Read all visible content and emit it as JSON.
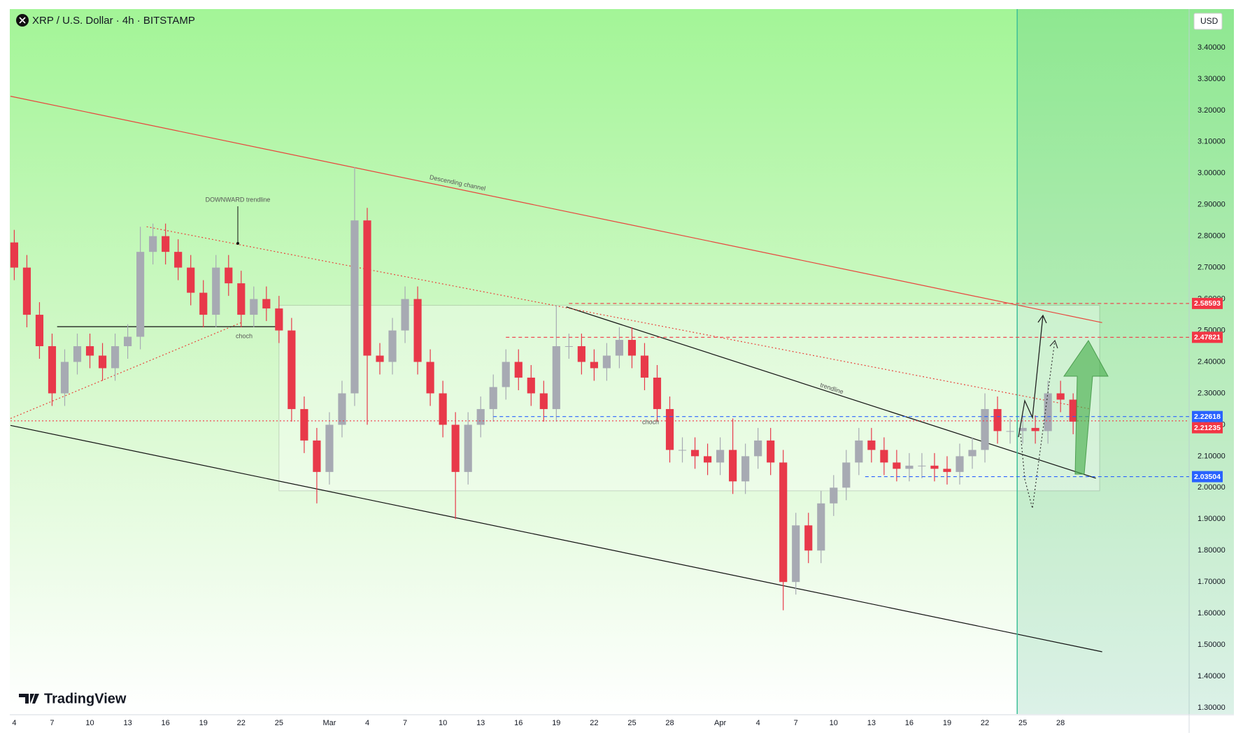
{
  "header": {
    "symbol": "XRP / U.S. Dollar · 4h · BITSTAMP",
    "currency": "USD",
    "brand": "TradingView"
  },
  "chart_data": {
    "type": "candlestick",
    "x": [
      0,
      1,
      2,
      3,
      4,
      5,
      6,
      7,
      8,
      9,
      10,
      11,
      12,
      13,
      14,
      15,
      16,
      17,
      18,
      19,
      20,
      21,
      22,
      23,
      24,
      25,
      26,
      27,
      28,
      29,
      30,
      31,
      32,
      33,
      34,
      35,
      36,
      37,
      38,
      39,
      40,
      41,
      42,
      43,
      44,
      45,
      46,
      47,
      48,
      49,
      50,
      51,
      52,
      53,
      54,
      55,
      56,
      57,
      58,
      59,
      60,
      61,
      62,
      63,
      64,
      65,
      66,
      67,
      68,
      69,
      70,
      71,
      72,
      73,
      74,
      75,
      76,
      77,
      78,
      79,
      80,
      81,
      82,
      83,
      84
    ],
    "open": [
      2.78,
      2.7,
      2.55,
      2.45,
      2.3,
      2.4,
      2.45,
      2.42,
      2.38,
      2.45,
      2.48,
      2.75,
      2.8,
      2.75,
      2.7,
      2.62,
      2.55,
      2.7,
      2.65,
      2.55,
      2.6,
      2.57,
      2.5,
      2.25,
      2.15,
      2.05,
      2.2,
      2.3,
      2.85,
      2.42,
      2.4,
      2.5,
      2.6,
      2.4,
      2.3,
      2.2,
      2.05,
      2.2,
      2.25,
      2.32,
      2.4,
      2.35,
      2.3,
      2.25,
      2.45,
      2.45,
      2.4,
      2.38,
      2.42,
      2.47,
      2.42,
      2.35,
      2.25,
      2.12,
      2.12,
      2.1,
      2.08,
      2.12,
      2.02,
      2.1,
      2.15,
      2.08,
      1.7,
      1.88,
      1.8,
      1.95,
      2.0,
      2.08,
      2.15,
      2.12,
      2.08,
      2.06,
      2.07,
      2.07,
      2.06,
      2.05,
      2.1,
      2.12,
      2.25,
      2.18,
      2.18,
      2.19,
      2.18,
      2.3,
      2.28
    ],
    "high": [
      2.82,
      2.74,
      2.59,
      2.49,
      2.44,
      2.49,
      2.49,
      2.46,
      2.49,
      2.52,
      2.83,
      2.84,
      2.84,
      2.79,
      2.74,
      2.66,
      2.74,
      2.74,
      2.69,
      2.64,
      2.64,
      2.61,
      2.54,
      2.29,
      2.19,
      2.24,
      2.34,
      3.02,
      2.89,
      2.46,
      2.54,
      2.64,
      2.64,
      2.44,
      2.34,
      2.24,
      2.24,
      2.29,
      2.36,
      2.44,
      2.44,
      2.39,
      2.34,
      2.58,
      2.49,
      2.49,
      2.44,
      2.46,
      2.51,
      2.51,
      2.46,
      2.39,
      2.29,
      2.16,
      2.16,
      2.14,
      2.16,
      2.22,
      2.14,
      2.19,
      2.19,
      2.12,
      1.92,
      1.92,
      1.99,
      2.04,
      2.12,
      2.19,
      2.19,
      2.16,
      2.12,
      2.11,
      2.11,
      2.11,
      2.1,
      2.14,
      2.16,
      2.3,
      2.29,
      2.22,
      2.23,
      2.23,
      2.34,
      2.34,
      2.3
    ],
    "low": [
      2.66,
      2.51,
      2.41,
      2.26,
      2.26,
      2.36,
      2.38,
      2.34,
      2.34,
      2.41,
      2.44,
      2.71,
      2.71,
      2.66,
      2.58,
      2.51,
      2.51,
      2.61,
      2.51,
      2.51,
      2.53,
      2.46,
      2.21,
      2.11,
      1.95,
      2.01,
      2.16,
      2.26,
      2.2,
      2.36,
      2.36,
      2.46,
      2.36,
      2.26,
      2.16,
      1.9,
      2.01,
      2.16,
      2.21,
      2.28,
      2.31,
      2.26,
      2.21,
      2.21,
      2.41,
      2.36,
      2.34,
      2.34,
      2.38,
      2.38,
      2.31,
      2.21,
      2.08,
      2.08,
      2.06,
      2.04,
      2.04,
      1.98,
      1.98,
      2.06,
      2.04,
      1.61,
      1.66,
      1.76,
      1.76,
      1.91,
      1.96,
      2.04,
      2.08,
      2.04,
      2.02,
      2.02,
      2.03,
      2.02,
      2.01,
      2.01,
      2.06,
      2.08,
      2.14,
      2.14,
      2.14,
      2.14,
      2.14,
      2.24,
      2.17
    ],
    "close": [
      2.7,
      2.55,
      2.45,
      2.3,
      2.4,
      2.45,
      2.42,
      2.38,
      2.45,
      2.48,
      2.75,
      2.8,
      2.75,
      2.7,
      2.62,
      2.55,
      2.7,
      2.65,
      2.55,
      2.6,
      2.57,
      2.5,
      2.25,
      2.15,
      2.05,
      2.2,
      2.3,
      2.85,
      2.42,
      2.4,
      2.5,
      2.6,
      2.4,
      2.3,
      2.2,
      2.05,
      2.2,
      2.25,
      2.32,
      2.4,
      2.35,
      2.3,
      2.25,
      2.45,
      2.45,
      2.4,
      2.38,
      2.42,
      2.47,
      2.42,
      2.35,
      2.25,
      2.12,
      2.12,
      2.1,
      2.08,
      2.12,
      2.02,
      2.1,
      2.15,
      2.08,
      1.7,
      1.88,
      1.8,
      1.95,
      2.0,
      2.08,
      2.15,
      2.12,
      2.08,
      2.06,
      2.07,
      2.07,
      2.06,
      2.05,
      2.1,
      2.12,
      2.25,
      2.18,
      2.18,
      2.19,
      2.18,
      2.3,
      2.28,
      2.21
    ],
    "up_color": "#a7aab3",
    "down_color": "#e8394a",
    "xlim": [
      -0.3,
      93.2
    ],
    "xticks": [
      {
        "value": 0,
        "label": "4"
      },
      {
        "value": 3,
        "label": "7"
      },
      {
        "value": 6,
        "label": "10"
      },
      {
        "value": 9,
        "label": "13"
      },
      {
        "value": 12,
        "label": "16"
      },
      {
        "value": 15,
        "label": "19"
      },
      {
        "value": 18,
        "label": "22"
      },
      {
        "value": 21,
        "label": "25"
      },
      {
        "value": 25,
        "label": "Mar"
      },
      {
        "value": 28,
        "label": "4"
      },
      {
        "value": 31,
        "label": "7"
      },
      {
        "value": 34,
        "label": "10"
      },
      {
        "value": 37,
        "label": "13"
      },
      {
        "value": 40,
        "label": "16"
      },
      {
        "value": 43,
        "label": "19"
      },
      {
        "value": 46,
        "label": "22"
      },
      {
        "value": 49,
        "label": "25"
      },
      {
        "value": 52,
        "label": "28"
      },
      {
        "value": 56,
        "label": "Apr"
      },
      {
        "value": 59,
        "label": "4"
      },
      {
        "value": 62,
        "label": "7"
      },
      {
        "value": 65,
        "label": "10"
      },
      {
        "value": 68,
        "label": "13"
      },
      {
        "value": 71,
        "label": "16"
      },
      {
        "value": 74,
        "label": "19"
      },
      {
        "value": 77,
        "label": "22"
      },
      {
        "value": 80,
        "label": "25"
      },
      {
        "value": 83,
        "label": "28"
      }
    ],
    "ylim": [
      1.28,
      3.52
    ],
    "yticks": [
      {
        "value": 1.3,
        "label": "1.30000"
      },
      {
        "value": 1.4,
        "label": "1.40000"
      },
      {
        "value": 1.5,
        "label": "1.50000"
      },
      {
        "value": 1.6,
        "label": "1.60000"
      },
      {
        "value": 1.7,
        "label": "1.70000"
      },
      {
        "value": 1.8,
        "label": "1.80000"
      },
      {
        "value": 1.9,
        "label": "1.90000"
      },
      {
        "value": 2.0,
        "label": "2.00000"
      },
      {
        "value": 2.1,
        "label": "2.10000"
      },
      {
        "value": 2.2,
        "label": "2.20000"
      },
      {
        "value": 2.3,
        "label": "2.30000"
      },
      {
        "value": 2.4,
        "label": "2.40000"
      },
      {
        "value": 2.5,
        "label": "2.50000"
      },
      {
        "value": 2.6,
        "label": "2.60000"
      },
      {
        "value": 2.7,
        "label": "2.70000"
      },
      {
        "value": 2.8,
        "label": "2.80000"
      },
      {
        "value": 2.9,
        "label": "2.90000"
      },
      {
        "value": 3.0,
        "label": "3.00000"
      },
      {
        "value": 3.1,
        "label": "3.10000"
      },
      {
        "value": 3.2,
        "label": "3.20000"
      },
      {
        "value": 3.3,
        "label": "3.30000"
      },
      {
        "value": 3.4,
        "label": "3.40000"
      }
    ],
    "grid": false,
    "levels": [
      {
        "value": 2.58593,
        "color": "#f23645",
        "style": "dashed",
        "from": 44
      },
      {
        "value": 2.47821,
        "color": "#f23645",
        "style": "dashed",
        "from": 39
      },
      {
        "value": 2.22618,
        "color": "#2962ff",
        "style": "dashed",
        "from": 38
      },
      {
        "value": 2.21235,
        "color": "#f23645",
        "style": "dotted",
        "from": -0.3
      },
      {
        "value": 2.03504,
        "color": "#2962ff",
        "style": "dashed",
        "from": 67.5
      }
    ],
    "lines": [
      {
        "color": "#e8453c",
        "style": "solid",
        "points": [
          [
            -0.3,
            3.245
          ],
          [
            86.3,
            2.525
          ]
        ]
      },
      {
        "color": "#111111",
        "style": "solid",
        "points": [
          [
            -0.3,
            2.198
          ],
          [
            86.3,
            1.478
          ]
        ]
      },
      {
        "color": "#111111",
        "style": "solid",
        "points": [
          [
            43.8,
            2.575
          ],
          [
            85.8,
            2.03
          ]
        ]
      },
      {
        "color": "#e8453c",
        "style": "dotted",
        "points": [
          [
            10.5,
            2.83
          ],
          [
            85.4,
            2.25
          ]
        ]
      },
      {
        "color": "#e8453c",
        "style": "dotted",
        "points": [
          [
            -0.3,
            2.22
          ],
          [
            18,
            2.525
          ]
        ]
      },
      {
        "color": "#111111",
        "style": "solid",
        "points": [
          [
            3.4,
            2.512
          ],
          [
            20.9,
            2.512
          ]
        ]
      }
    ],
    "zone": {
      "x": [
        21,
        86.1
      ],
      "y": [
        1.99,
        2.58
      ]
    },
    "marker_x": 79.56,
    "annotations": [
      "Descending channel",
      "DOWNWARD  trendline",
      "choch",
      "choch",
      "trendline"
    ]
  }
}
